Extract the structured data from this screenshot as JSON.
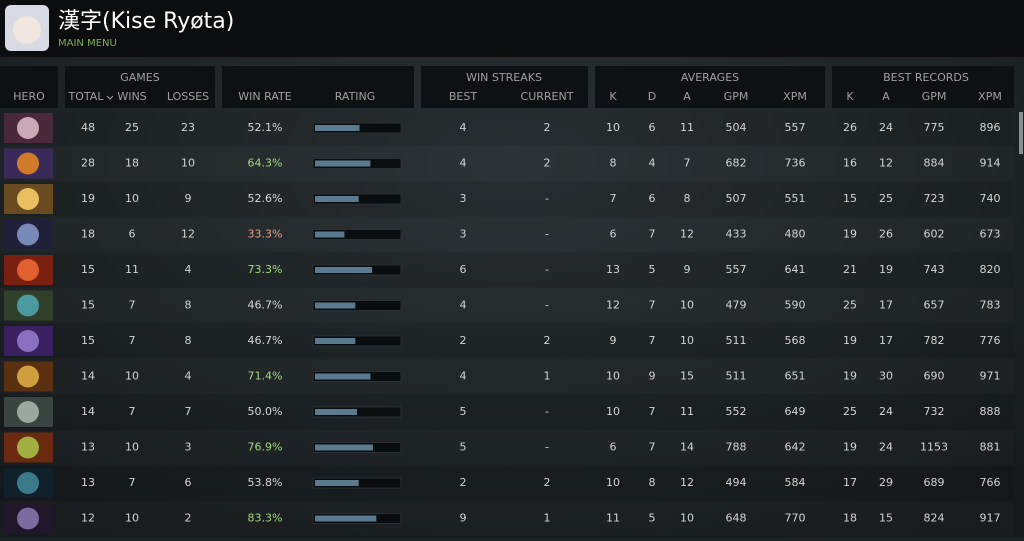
{
  "header": {
    "title": "漢字(Kise Ryøta)",
    "subtitle": "MAIN MENU"
  },
  "table": {
    "groups": [
      "GAMES",
      "WIN STREAKS",
      "AVERAGES",
      "BEST RECORDS"
    ],
    "columns": [
      "HERO",
      "TOTAL",
      "WINS",
      "LOSSES",
      "WIN RATE",
      "RATING",
      "BEST",
      "CURRENT",
      "K",
      "D",
      "A",
      "GPM",
      "XPM",
      "K",
      "A",
      "GPM",
      "XPM"
    ],
    "rows": [
      {
        "cells": [
          48,
          25,
          23,
          "52.1%",
          4,
          2,
          10,
          6,
          11,
          504,
          557,
          26,
          24,
          775,
          896
        ],
        "win_rate_color": "#d6d6d6",
        "rating": 0.53
      },
      {
        "cells": [
          28,
          18,
          10,
          "64.3%",
          4,
          2,
          8,
          4,
          7,
          682,
          736,
          16,
          12,
          884,
          914
        ],
        "win_rate_color": "#a6d77e",
        "rating": 0.66
      },
      {
        "cells": [
          19,
          10,
          9,
          "52.6%",
          3,
          "-",
          7,
          6,
          8,
          507,
          551,
          15,
          25,
          723,
          740
        ],
        "win_rate_color": "#d6d6d6",
        "rating": 0.52
      },
      {
        "cells": [
          18,
          6,
          12,
          "33.3%",
          3,
          "-",
          6,
          7,
          12,
          433,
          480,
          19,
          26,
          602,
          673
        ],
        "win_rate_color": "#e0a08e",
        "rating": 0.35
      },
      {
        "cells": [
          15,
          11,
          4,
          "73.3%",
          6,
          "-",
          13,
          5,
          9,
          557,
          641,
          21,
          19,
          743,
          820
        ],
        "win_rate_color": "#a6d77e",
        "rating": 0.68
      },
      {
        "cells": [
          15,
          7,
          8,
          "46.7%",
          4,
          "-",
          12,
          7,
          10,
          479,
          590,
          25,
          17,
          657,
          783
        ],
        "win_rate_color": "#d6d6d6",
        "rating": 0.48
      },
      {
        "cells": [
          15,
          7,
          8,
          "46.7%",
          2,
          2,
          9,
          7,
          10,
          511,
          568,
          19,
          17,
          782,
          776
        ],
        "win_rate_color": "#d6d6d6",
        "rating": 0.48
      },
      {
        "cells": [
          14,
          10,
          4,
          "71.4%",
          4,
          1,
          10,
          9,
          15,
          511,
          651,
          19,
          30,
          690,
          971
        ],
        "win_rate_color": "#a6d77e",
        "rating": 0.66
      },
      {
        "cells": [
          14,
          7,
          7,
          "50.0%",
          5,
          "-",
          10,
          7,
          11,
          552,
          649,
          25,
          24,
          732,
          888
        ],
        "win_rate_color": "#d6d6d6",
        "rating": 0.5
      },
      {
        "cells": [
          13,
          10,
          3,
          "76.9%",
          5,
          "-",
          6,
          7,
          14,
          788,
          642,
          19,
          24,
          1153,
          881
        ],
        "win_rate_color": "#a6d77e",
        "rating": 0.69
      },
      {
        "cells": [
          13,
          7,
          6,
          "53.8%",
          2,
          2,
          10,
          8,
          12,
          494,
          584,
          17,
          29,
          689,
          766
        ],
        "win_rate_color": "#d6d6d6",
        "rating": 0.52
      },
      {
        "cells": [
          12,
          10,
          2,
          "83.3%",
          9,
          1,
          11,
          5,
          10,
          648,
          770,
          18,
          15,
          824,
          917
        ],
        "win_rate_color": "#a6d77e",
        "rating": 0.73
      }
    ]
  }
}
